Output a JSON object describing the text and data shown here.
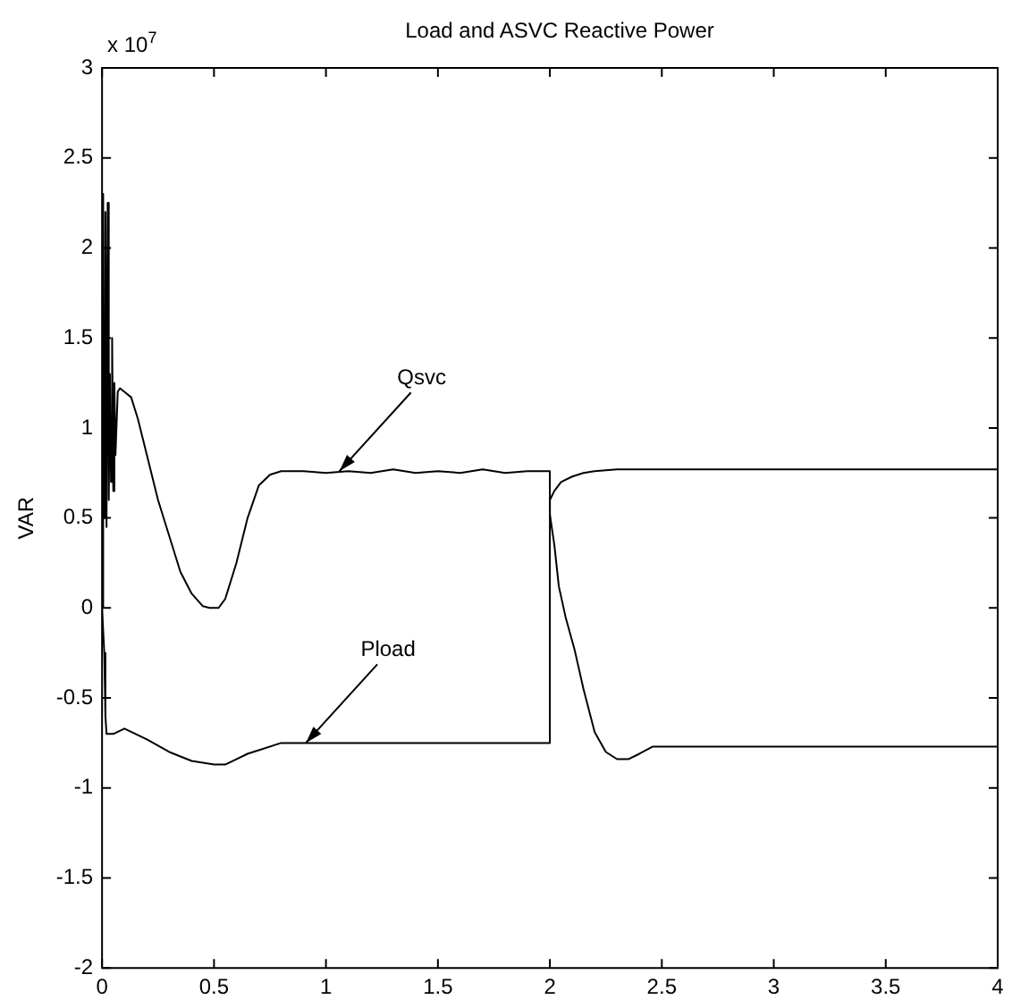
{
  "chart_data": {
    "type": "line",
    "title": "Load and ASVC Reactive  Power",
    "ylabel": "VAR",
    "annotations": [
      "x 10$^{7}$",
      {
        "text": "Qsvc",
        "x": 1.06,
        "y": 0.76
      },
      {
        "text": "Pload",
        "x": 0.91,
        "y": -0.75
      }
    ],
    "xlim": [
      0,
      4
    ],
    "xticks": [
      0,
      0.5,
      1,
      1.5,
      2,
      2.5,
      3,
      3.5,
      4
    ],
    "ylim": [
      -2,
      3
    ],
    "yticks": [
      -2,
      -1.5,
      -1,
      -0.5,
      0,
      0.5,
      1,
      1.5,
      2,
      2.5,
      3
    ],
    "grid": false,
    "legend": false,
    "marker": "none",
    "line_style": "solid",
    "series": [
      {
        "color": "#000000",
        "x": [
          0,
          0.005,
          0.01,
          0.015,
          0.02,
          0.025,
          0.03,
          0.035,
          0.04,
          0.045,
          0.05,
          0.055,
          0.06,
          0.07,
          0.08,
          0.1,
          0.13,
          0.16,
          0.2,
          0.25,
          0.3,
          0.35,
          0.4,
          0.45,
          0.48,
          0.52,
          0.55,
          0.6,
          0.65,
          0.7,
          0.75,
          0.8,
          0.9,
          1.0,
          1.1,
          1.2,
          1.3,
          1.4,
          1.5,
          1.6,
          1.7,
          1.8,
          1.9,
          2.0,
          2.0,
          2.02,
          2.04,
          2.07,
          2.11,
          2.15,
          2.2,
          2.25,
          2.3,
          2.35,
          2.4,
          2.46,
          3.0,
          4.0
        ],
        "values": [
          0,
          2.3,
          0.5,
          2.2,
          0.45,
          2.25,
          0.6,
          1.3,
          0.7,
          1.5,
          0.65,
          1.25,
          0.85,
          1.2,
          1.22,
          1.2,
          1.17,
          1.05,
          0.85,
          0.6,
          0.4,
          0.2,
          0.08,
          0.01,
          0,
          0,
          0.05,
          0.25,
          0.5,
          0.68,
          0.74,
          0.76,
          0.76,
          0.75,
          0.76,
          0.75,
          0.77,
          0.75,
          0.76,
          0.75,
          0.77,
          0.75,
          0.76,
          0.76,
          0.52,
          0.35,
          0.12,
          -0.05,
          -0.23,
          -0.45,
          -0.69,
          -0.8,
          -0.84,
          -0.84,
          -0.81,
          -0.77,
          -0.77,
          -0.77
        ]
      },
      {
        "color": "#000000",
        "x": [
          0,
          0.01,
          0.015,
          0.02,
          0.05,
          0.1,
          0.15,
          0.2,
          0.3,
          0.4,
          0.5,
          0.55,
          0.6,
          0.65,
          0.7,
          0.8,
          1.0,
          1.5,
          2.0,
          2.0,
          2.02,
          2.05,
          2.1,
          2.15,
          2.2,
          2.3,
          3.0,
          4.0
        ],
        "values": [
          0,
          -0.25,
          -0.6,
          -0.7,
          -0.7,
          -0.67,
          -0.7,
          -0.73,
          -0.8,
          -0.85,
          -0.87,
          -0.87,
          -0.84,
          -0.81,
          -0.79,
          -0.75,
          -0.75,
          -0.75,
          -0.75,
          0.6,
          0.65,
          0.7,
          0.73,
          0.75,
          0.76,
          0.77,
          0.77,
          0.77
        ]
      }
    ]
  }
}
